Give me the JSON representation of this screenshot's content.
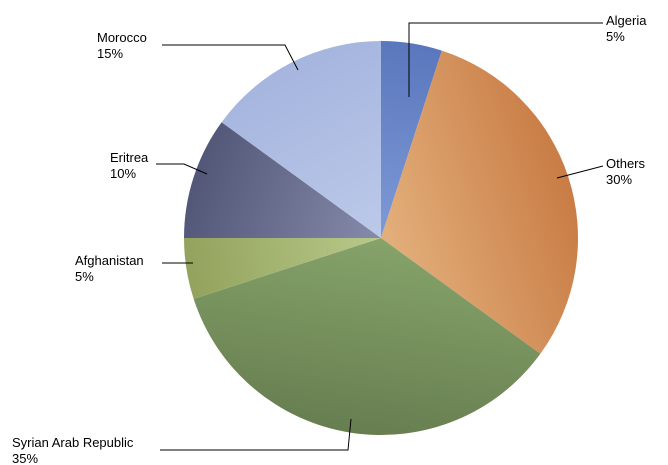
{
  "chart_data": {
    "type": "pie",
    "title": "",
    "start_angle_deg": 0,
    "direction": "clockwise",
    "legend": "none",
    "slices": [
      {
        "label": "Algeria",
        "value": 5,
        "display": "5%",
        "color_light": "#7e9ad6",
        "color_dark": "#5a77bd"
      },
      {
        "label": "Others",
        "value": 30,
        "display": "30%",
        "color_light": "#e3b07c",
        "color_dark": "#c97c45"
      },
      {
        "label": "Syrian Arab Republic",
        "value": 35,
        "display": "35%",
        "color_light": "#86a36a",
        "color_dark": "#677e50"
      },
      {
        "label": "Afghanistan",
        "value": 5,
        "display": "5%",
        "color_light": "#b8c98a",
        "color_dark": "#93a35d"
      },
      {
        "label": "Eritrea",
        "value": 10,
        "display": "10%",
        "color_light": "#868bab",
        "color_dark": "#525777"
      },
      {
        "label": "Morocco",
        "value": 15,
        "display": "15%",
        "color_light": "#bcc9e9",
        "color_dark": "#a5b5de"
      }
    ]
  }
}
